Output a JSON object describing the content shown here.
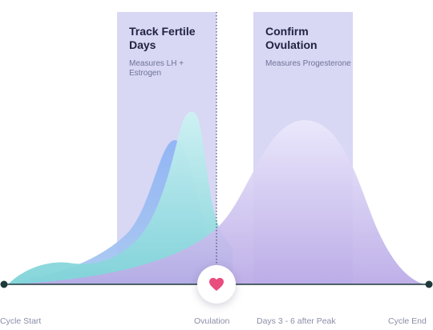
{
  "panels": [
    {
      "title": "Track Fertile Days",
      "subtitle": "Measures LH + Estrogen"
    },
    {
      "title": "Confirm Ovulation",
      "subtitle": "Measures Progesterone"
    }
  ],
  "timeline": {
    "start": "Cycle Start",
    "ovulation": "Ovulation",
    "after_peak": "Days 3 - 6 after Peak",
    "end": "Cycle End"
  },
  "colors": {
    "panel": "#d6d5f2",
    "estrogen": "#93b9f2",
    "lh": "#b9ecef",
    "progesterone": "#e2dcf8",
    "axis": "#1f3a3a",
    "heart": "#e94d7e"
  },
  "icons": {
    "ovulation_marker": "heart-icon"
  }
}
